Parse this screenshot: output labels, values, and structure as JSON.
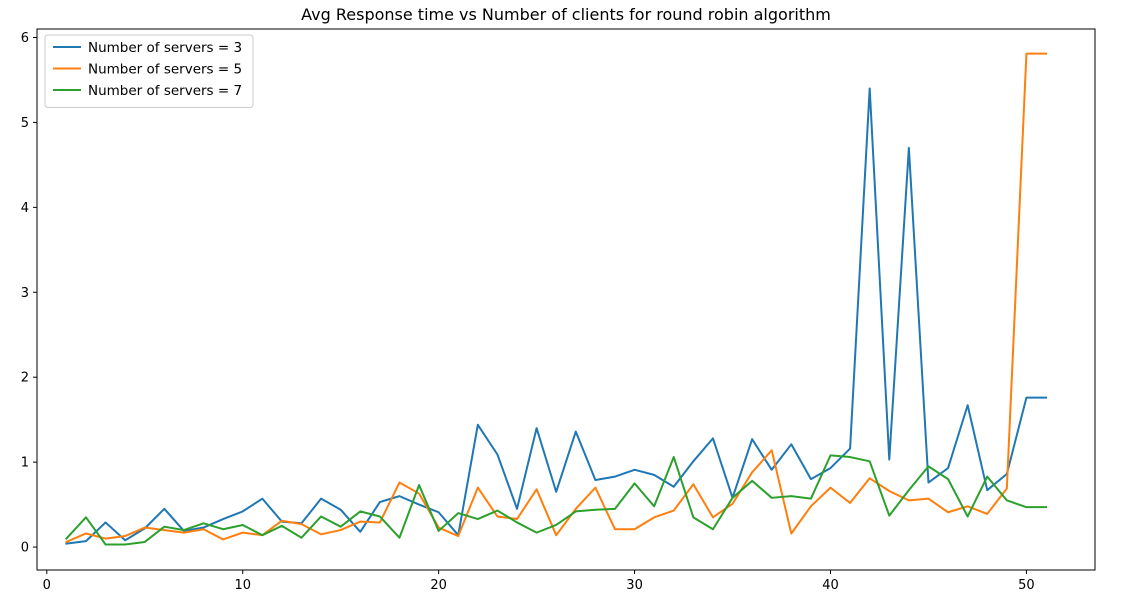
{
  "chart_data": {
    "type": "line",
    "title": "Avg Response time vs Number of clients for round robin algorithm",
    "xlabel": "",
    "ylabel": "",
    "xlim": [
      -0.5,
      53.5
    ],
    "ylim": [
      -0.27,
      6.1
    ],
    "xticks": [
      0,
      10,
      20,
      30,
      40,
      50
    ],
    "yticks": [
      0,
      1,
      2,
      3,
      4,
      5,
      6
    ],
    "grid": false,
    "legend_position": "top-left",
    "x": [
      1,
      2,
      3,
      4,
      5,
      6,
      7,
      8,
      9,
      10,
      11,
      12,
      13,
      14,
      15,
      16,
      17,
      18,
      19,
      20,
      21,
      22,
      23,
      24,
      25,
      26,
      27,
      28,
      29,
      30,
      31,
      32,
      33,
      34,
      35,
      36,
      37,
      38,
      39,
      40,
      41,
      42,
      43,
      44,
      45,
      46,
      47,
      48,
      49,
      50,
      51
    ],
    "series": [
      {
        "name": "Number of servers = 3",
        "color": "#1f77b4",
        "values": [
          0.04,
          0.07,
          0.29,
          0.08,
          0.22,
          0.45,
          0.19,
          0.23,
          0.33,
          0.42,
          0.57,
          0.3,
          0.28,
          0.57,
          0.44,
          0.18,
          0.53,
          0.6,
          0.5,
          0.41,
          0.14,
          1.44,
          1.09,
          0.45,
          1.4,
          0.65,
          1.36,
          0.79,
          0.83,
          0.91,
          0.85,
          0.71,
          1.01,
          1.28,
          0.58,
          1.27,
          0.91,
          1.21,
          0.8,
          0.93,
          1.16,
          5.4,
          1.03,
          4.7,
          0.76,
          0.93,
          1.67,
          0.67,
          0.86,
          1.76,
          1.76
        ]
      },
      {
        "name": "Number of servers = 5",
        "color": "#ff7f0e",
        "values": [
          0.06,
          0.16,
          0.1,
          0.13,
          0.23,
          0.2,
          0.17,
          0.21,
          0.09,
          0.17,
          0.14,
          0.31,
          0.27,
          0.15,
          0.2,
          0.3,
          0.29,
          0.76,
          0.63,
          0.23,
          0.13,
          0.7,
          0.36,
          0.33,
          0.68,
          0.14,
          0.45,
          0.7,
          0.21,
          0.21,
          0.35,
          0.43,
          0.74,
          0.35,
          0.51,
          0.88,
          1.14,
          0.16,
          0.48,
          0.7,
          0.52,
          0.81,
          0.66,
          0.55,
          0.57,
          0.41,
          0.48,
          0.39,
          0.69,
          5.81,
          5.81
        ]
      },
      {
        "name": "Number of servers = 7",
        "color": "#2ca02c",
        "values": [
          0.1,
          0.35,
          0.03,
          0.03,
          0.06,
          0.24,
          0.2,
          0.28,
          0.21,
          0.26,
          0.14,
          0.25,
          0.11,
          0.36,
          0.24,
          0.42,
          0.36,
          0.11,
          0.73,
          0.19,
          0.4,
          0.33,
          0.43,
          0.29,
          0.17,
          0.26,
          0.42,
          0.44,
          0.45,
          0.75,
          0.48,
          1.06,
          0.35,
          0.21,
          0.58,
          0.78,
          0.58,
          0.6,
          0.57,
          1.08,
          1.06,
          1.01,
          0.37,
          0.67,
          0.95,
          0.8,
          0.36,
          0.83,
          0.55,
          0.47,
          0.47
        ]
      }
    ]
  }
}
